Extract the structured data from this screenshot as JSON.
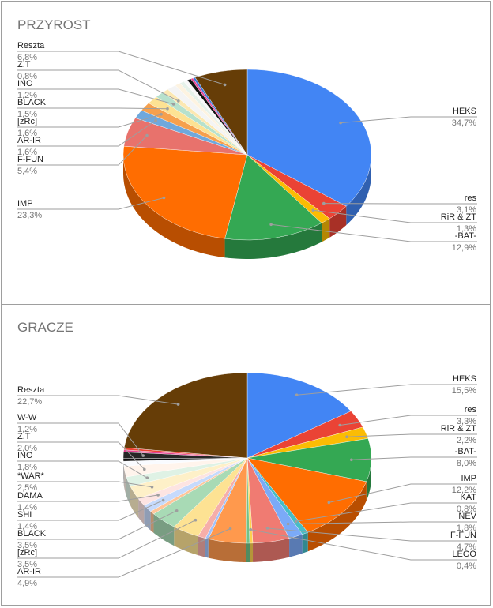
{
  "chart_data": [
    {
      "type": "pie",
      "title": "PRZYROST",
      "slices": [
        {
          "label": "HEKS",
          "value": 34.7,
          "display": "34,7%",
          "color": "#4285f4"
        },
        {
          "label": "res",
          "value": 3.1,
          "display": "3,1%",
          "color": "#ea4335"
        },
        {
          "label": "RiR & ZT",
          "value": 1.3,
          "display": "1,3%",
          "color": "#fbbc04"
        },
        {
          "label": "-BAT-",
          "value": 12.9,
          "display": "12,9%",
          "color": "#34a853"
        },
        {
          "label": "IMP",
          "value": 23.3,
          "display": "23,3%",
          "color": "#ff6d01"
        },
        {
          "label": "F-FUN",
          "value": 5.4,
          "display": "5,4%",
          "color": "#e8726c"
        },
        {
          "label": "AR-IR",
          "value": 1.6,
          "display": "1,6%",
          "color": "#6fa8dc"
        },
        {
          "label": "[zRc]",
          "value": 1.6,
          "display": "1,6%",
          "color": "#f6a04d"
        },
        {
          "label": "BLACK",
          "value": 1.5,
          "display": "1,5%",
          "color": "#fde293"
        },
        {
          "label": "INO",
          "value": 1.2,
          "display": "1,2%",
          "color": "#b7e1cd"
        },
        {
          "label": "Z.T",
          "value": 0.8,
          "display": "0,8%",
          "color": "#fce8b2"
        },
        {
          "label": "",
          "value": 1.2,
          "display": "",
          "color": "#f4f4f4"
        },
        {
          "label": "",
          "value": 0.7,
          "display": "",
          "color": "#fdf3e1"
        },
        {
          "label": "",
          "value": 0.6,
          "display": "",
          "color": "#e6f2ea"
        },
        {
          "label": "",
          "value": 0.5,
          "display": "",
          "color": "#f8f8f8"
        },
        {
          "label": "",
          "value": 0.5,
          "display": "",
          "color": "#111111"
        },
        {
          "label": "",
          "value": 0.3,
          "display": "",
          "color": "#e84393"
        },
        {
          "label": "",
          "value": 0.3,
          "display": "",
          "color": "#3c78d8"
        },
        {
          "label": "Reszta",
          "value": 6.8,
          "display": "6,8%",
          "color": "#663d07"
        }
      ]
    },
    {
      "type": "pie",
      "title": "GRACZE",
      "slices": [
        {
          "label": "HEKS",
          "value": 15.5,
          "display": "15,5%",
          "color": "#4285f4"
        },
        {
          "label": "res",
          "value": 3.3,
          "display": "3,3%",
          "color": "#ea4335"
        },
        {
          "label": "RiR & ZT",
          "value": 2.2,
          "display": "2,2%",
          "color": "#fbbc04"
        },
        {
          "label": "-BAT-",
          "value": 8.0,
          "display": "8,0%",
          "color": "#34a853"
        },
        {
          "label": "IMP",
          "value": 12.2,
          "display": "12,2%",
          "color": "#ff6d01"
        },
        {
          "label": "KAT",
          "value": 0.8,
          "display": "0,8%",
          "color": "#46bdc6"
        },
        {
          "label": "NEV",
          "value": 1.8,
          "display": "1,8%",
          "color": "#7baaf7"
        },
        {
          "label": "F-FUN",
          "value": 4.7,
          "display": "4,7%",
          "color": "#f07b72"
        },
        {
          "label": "LEGO",
          "value": 0.4,
          "display": "0,4%",
          "color": "#fcd04f"
        },
        {
          "label": "",
          "value": 0.4,
          "display": "",
          "color": "#71c287"
        },
        {
          "label": "AR-IR",
          "value": 4.9,
          "display": "4,9%",
          "color": "#ff994d"
        },
        {
          "label": "",
          "value": 0.4,
          "display": "",
          "color": "#a1c2fa"
        },
        {
          "label": "",
          "value": 1.0,
          "display": "",
          "color": "#f6aea9"
        },
        {
          "label": "[zRc]",
          "value": 3.5,
          "display": "3,5%",
          "color": "#fde293"
        },
        {
          "label": "BLACK",
          "value": 3.5,
          "display": "3,5%",
          "color": "#a8dab5"
        },
        {
          "label": "",
          "value": 0.6,
          "display": "",
          "color": "#ffc599"
        },
        {
          "label": "SHI",
          "value": 1.4,
          "display": "1,4%",
          "color": "#c6dafc"
        },
        {
          "label": "DAMA",
          "value": 1.4,
          "display": "1,4%",
          "color": "#fde4e2"
        },
        {
          "label": "*WAR*",
          "value": 2.5,
          "display": "2,5%",
          "color": "#fef0c8"
        },
        {
          "label": "INO",
          "value": 1.8,
          "display": "1,8%",
          "color": "#dff2e5"
        },
        {
          "label": "Z.T",
          "value": 2.0,
          "display": "2,0%",
          "color": "#fff4ec"
        },
        {
          "label": "",
          "value": 0.9,
          "display": "",
          "color": "#f9fbff"
        },
        {
          "label": "",
          "value": 0.5,
          "display": "",
          "color": "#111111"
        },
        {
          "label": "W-W",
          "value": 1.2,
          "display": "1,2%",
          "color": "#262626"
        },
        {
          "label": "",
          "value": 0.4,
          "display": "",
          "color": "#e84393"
        },
        {
          "label": "",
          "value": 0.4,
          "display": "",
          "color": "#ea4335"
        },
        {
          "label": "Reszta",
          "value": 22.7,
          "display": "22,7%",
          "color": "#663d07"
        }
      ]
    }
  ]
}
